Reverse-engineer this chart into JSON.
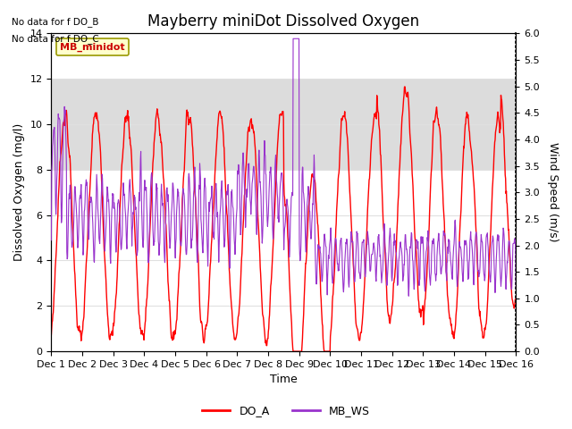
{
  "title": "Mayberry miniDot Dissolved Oxygen",
  "ylabel_left": "Dissolved Oxygen (mg/l)",
  "ylabel_right": "Wind Speed (m/s)",
  "xlabel": "Time",
  "ylim_left": [
    0,
    14
  ],
  "ylim_right": [
    0.0,
    6.0
  ],
  "yticks_left": [
    0,
    2,
    4,
    6,
    8,
    10,
    12,
    14
  ],
  "yticks_right": [
    0.0,
    0.5,
    1.0,
    1.5,
    2.0,
    2.5,
    3.0,
    3.5,
    4.0,
    4.5,
    5.0,
    5.5,
    6.0
  ],
  "no_data_text": [
    "No data for f DO_B",
    "No data for f DO_C"
  ],
  "legend_box_label": "MB_minidot",
  "legend_entries": [
    "DO_A",
    "MB_WS"
  ],
  "legend_colors": [
    "#ff0000",
    "#9933cc"
  ],
  "do_color": "#ff0000",
  "ws_color": "#9933cc",
  "bg_color": "#ffffff",
  "plot_bg_color": "#ffffff",
  "shaded_ymin": 8,
  "shaded_ymax": 12,
  "shaded_color": "#dcdcdc",
  "grid_color": "#e0e0e0",
  "title_fontsize": 12,
  "label_fontsize": 9,
  "tick_fontsize": 8,
  "xticklabels": [
    "Dec 1",
    "Dec 2",
    "Dec 3",
    "Dec 4",
    "Dec 5",
    "Dec 6",
    "Dec 7",
    "Dec 8",
    "Dec 9",
    "Dec 10",
    "Dec 11",
    "Dec 12",
    "Dec 13",
    "Dec 14",
    "Dec 15",
    "Dec 16"
  ],
  "xtick_positions": [
    0,
    1,
    2,
    3,
    4,
    5,
    6,
    7,
    8,
    9,
    10,
    11,
    12,
    13,
    14,
    15
  ]
}
